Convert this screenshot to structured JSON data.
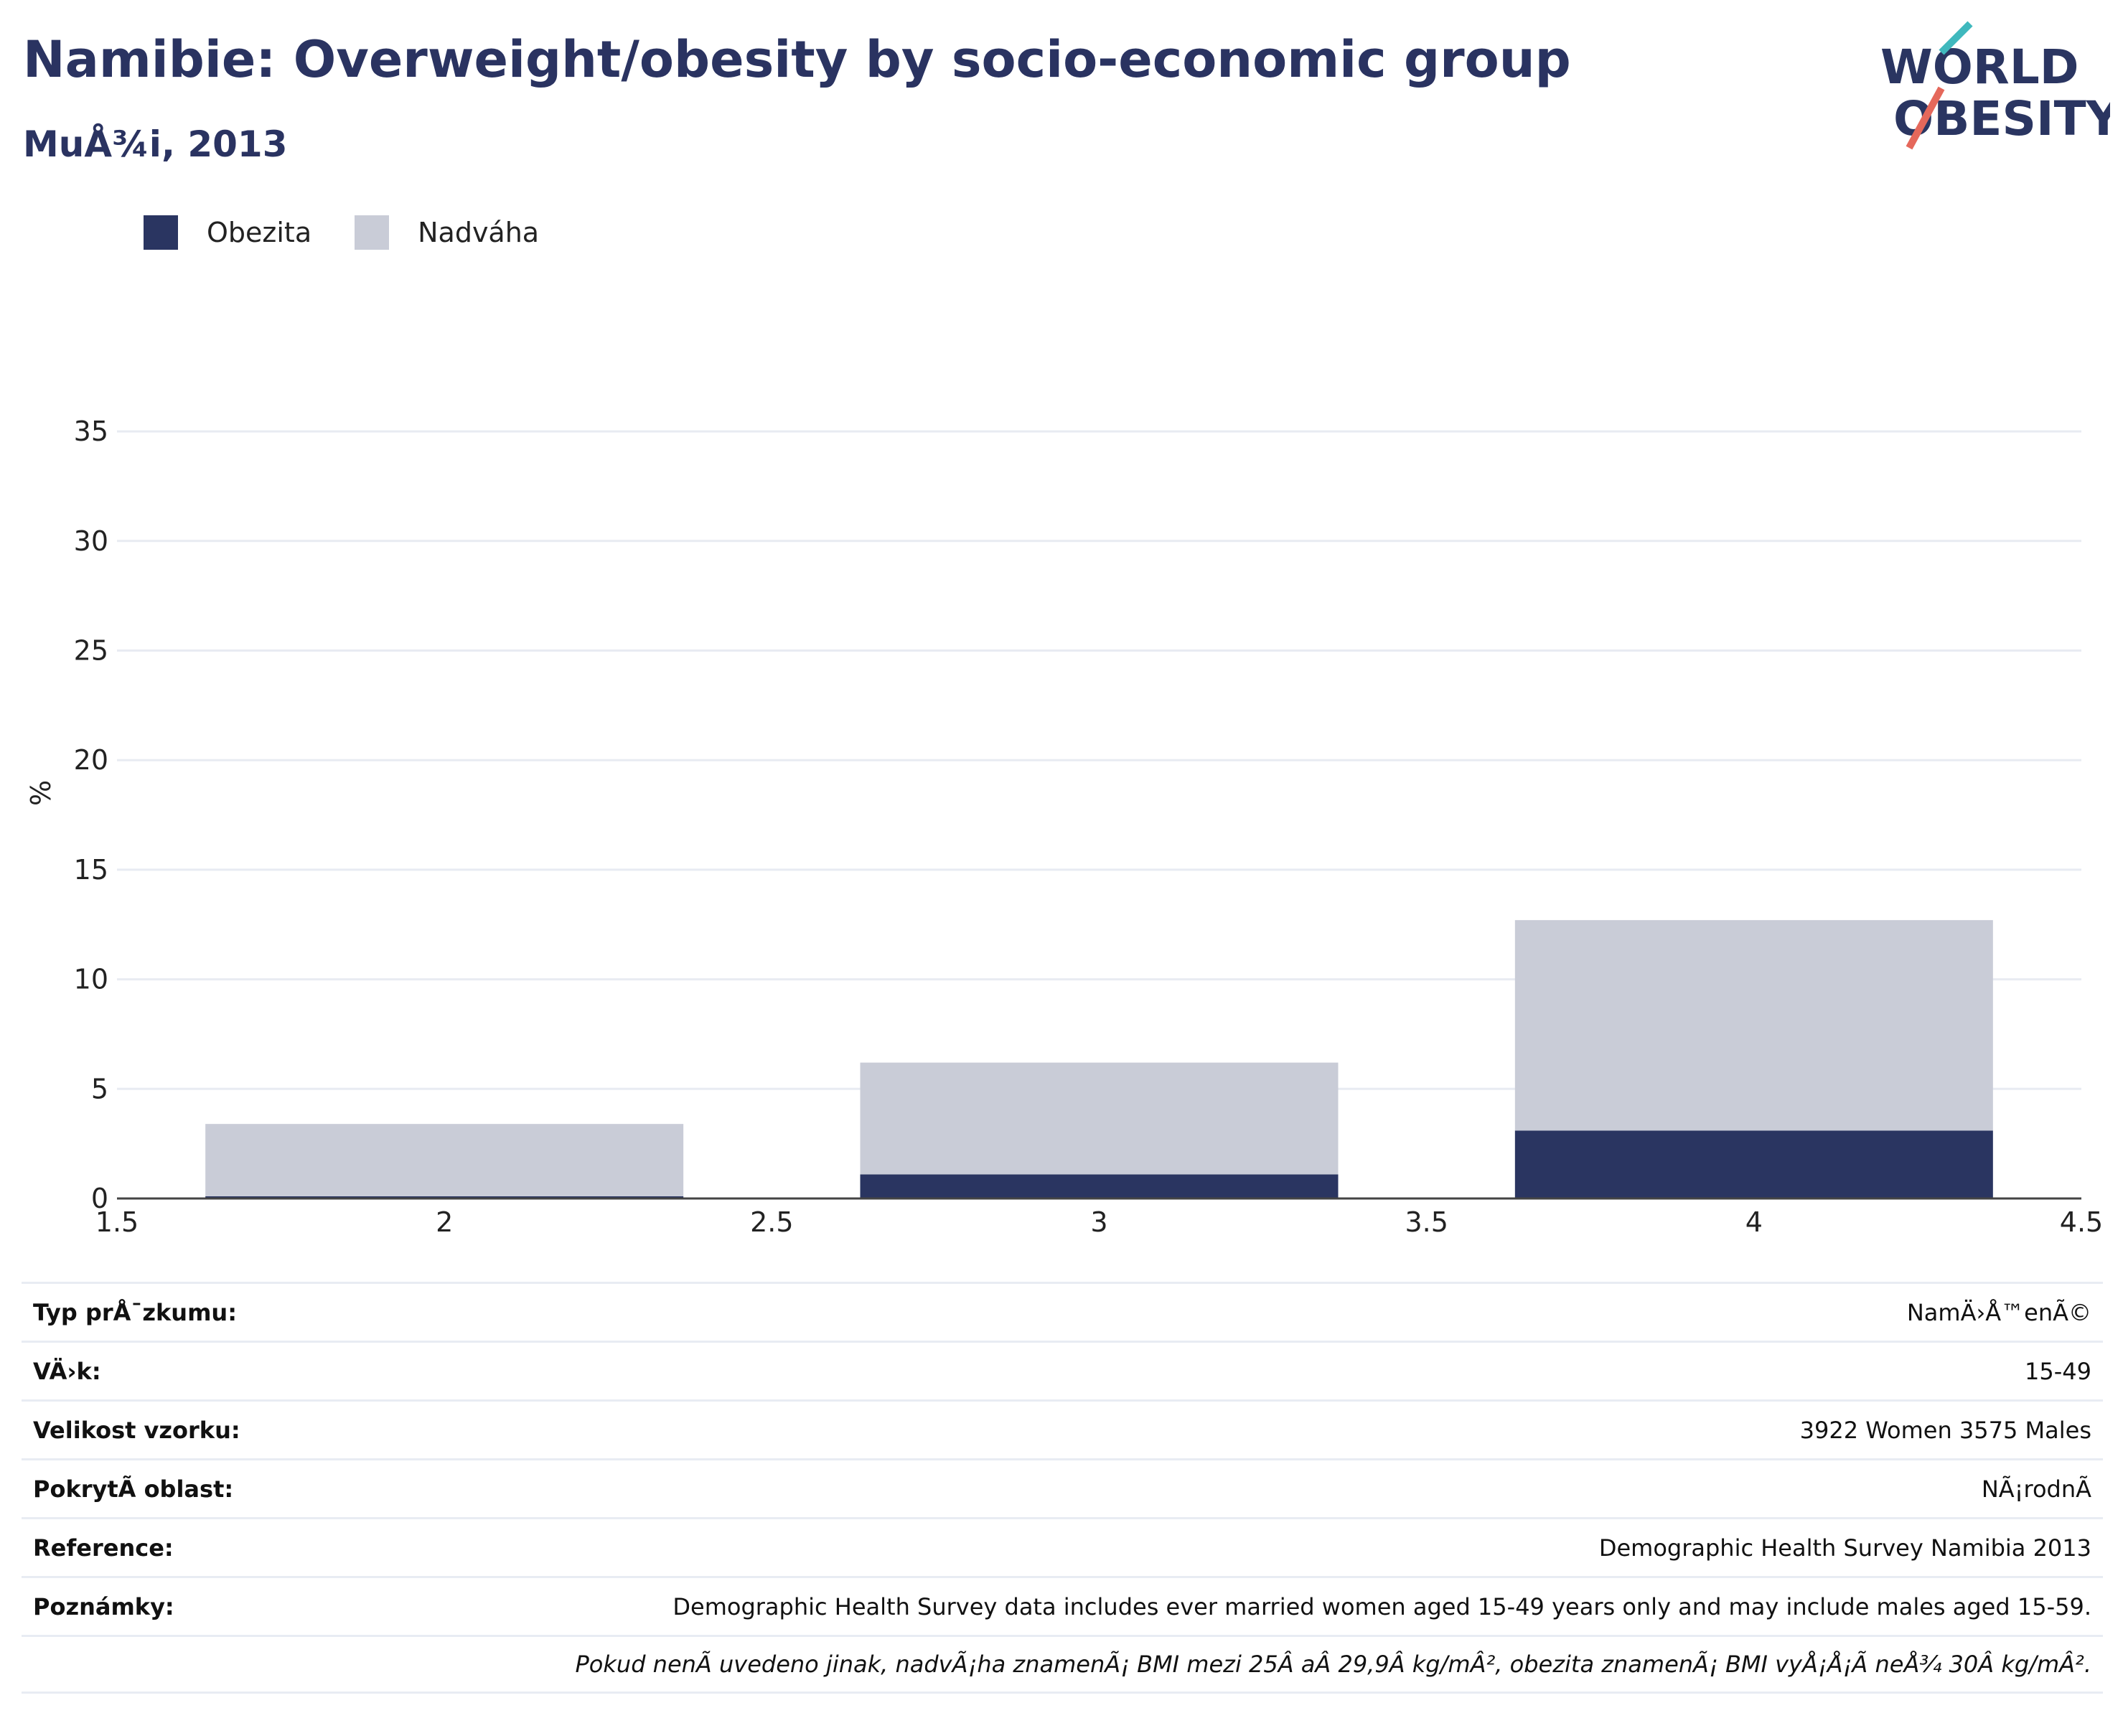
{
  "header": {
    "title": "Namibie: Overweight/obesity by socio-economic group",
    "subtitle": "MuÅ¾i, 2013",
    "logo_line1": "WORLD",
    "logo_line2": "OBESITY"
  },
  "colors": {
    "obesity": "#2a3561",
    "overweight": "#c9ccd7",
    "accent_teal": "#3fb8bd",
    "accent_red": "#e5685b"
  },
  "legend": [
    {
      "label": "Obezita",
      "color": "#2a3561"
    },
    {
      "label": "Nadváha",
      "color": "#c9ccd7"
    }
  ],
  "chart_data": {
    "type": "bar",
    "stacked": true,
    "x": [
      2,
      3,
      4
    ],
    "bar_width": 0.73,
    "series": [
      {
        "name": "Obezita",
        "values": [
          0.1,
          1.1,
          3.1
        ],
        "color": "#2a3561"
      },
      {
        "name": "Nadváha",
        "values": [
          3.3,
          5.1,
          9.6
        ],
        "color": "#c9ccd7"
      }
    ],
    "xlim": [
      1.5,
      4.5
    ],
    "ylim": [
      0,
      37
    ],
    "xticks": [
      "1.5",
      "2",
      "2.5",
      "3",
      "3.5",
      "4",
      "4.5"
    ],
    "yticks": [
      "0",
      "5",
      "10",
      "15",
      "20",
      "25",
      "30",
      "35"
    ],
    "ylabel": "%",
    "grid": true,
    "legend_position": "top-left"
  },
  "table": {
    "rows": [
      {
        "label": "Typ prÅ¯zkumu:",
        "value": "NamÄ›Å™enÃ©"
      },
      {
        "label": "VÄ›k:",
        "value": "15-49"
      },
      {
        "label": "Velikost vzorku:",
        "value": "3922 Women 3575 Males"
      },
      {
        "label": "PokrytÃ­ oblast:",
        "value": "NÃ¡rodnÃ­"
      },
      {
        "label": "Reference:",
        "value": "Demographic Health Survey Namibia 2013"
      },
      {
        "label": "Poznámky:",
        "value": "Demographic Health Survey data includes ever married women aged 15-49 years only and may include males aged 15-59."
      }
    ],
    "footnote": "Pokud nenÃ­ uvedeno jinak, nadvÃ¡ha znamenÃ¡ BMI mezi 25Â aÂ 29,9Â kg/mÂ², obezita znamenÃ¡ BMI vyÅ¡Å¡Ã­ neÅ¾ 30Â kg/mÂ²."
  }
}
